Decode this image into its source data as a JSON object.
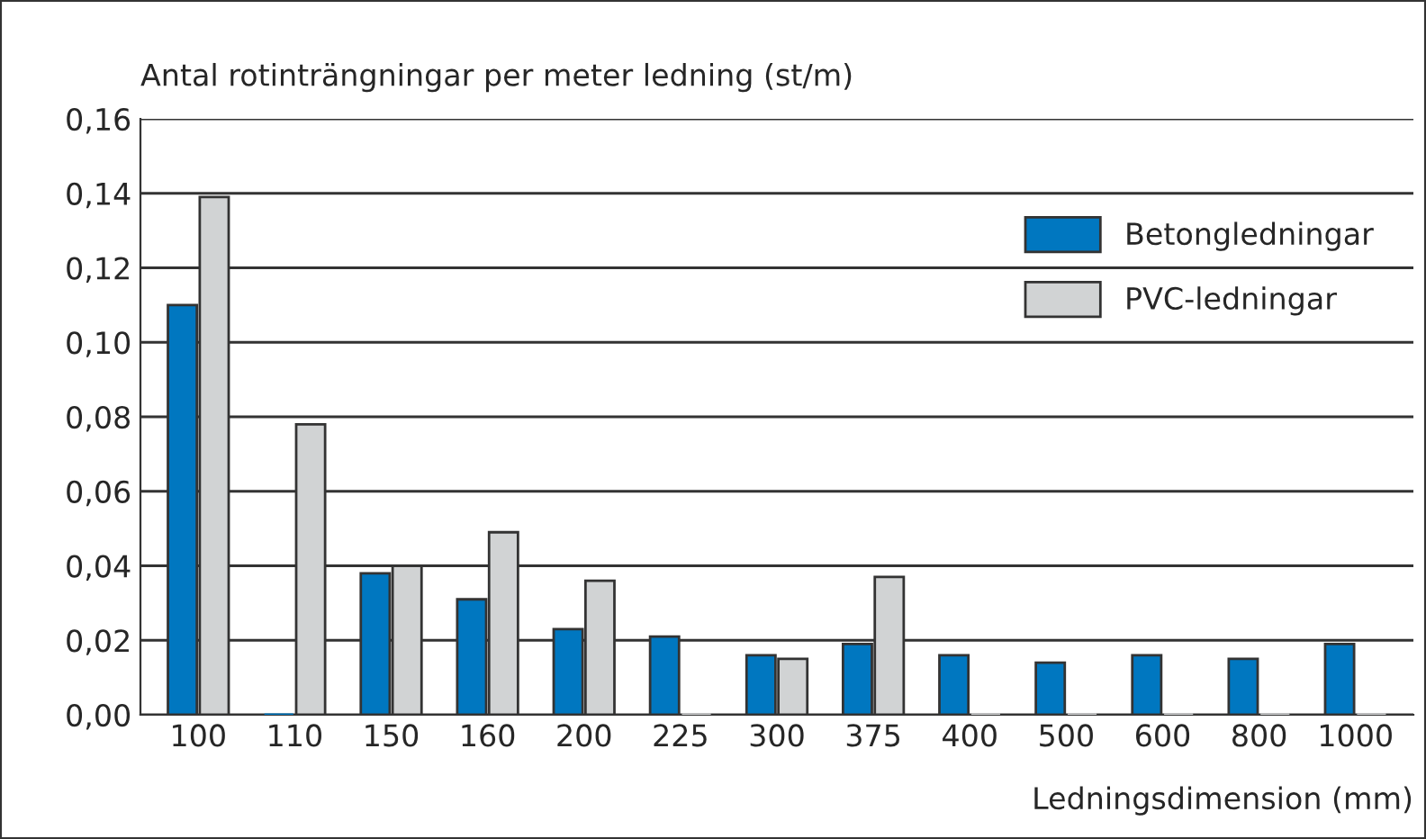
{
  "chart_data": {
    "type": "bar",
    "ylabel": "Antal rotinträngningar per meter ledning (st/m)",
    "xlabel": "Ledningsdimension (mm)",
    "categories": [
      "100",
      "110",
      "150",
      "160",
      "200",
      "225",
      "300",
      "375",
      "400",
      "500",
      "600",
      "800",
      "1000"
    ],
    "series": [
      {
        "name": "Betongledningar",
        "color": "#0077c0",
        "values": [
          0.11,
          0,
          0.038,
          0.031,
          0.023,
          0.021,
          0.016,
          0.019,
          0.016,
          0.014,
          0.016,
          0.015,
          0.019
        ]
      },
      {
        "name": "PVC-ledningar",
        "color": "#d1d3d4",
        "values": [
          0.139,
          0.078,
          0.04,
          0.049,
          0.036,
          0,
          0.015,
          0.037,
          0,
          0,
          0,
          0,
          0
        ]
      }
    ],
    "ylim": [
      0,
      0.16
    ],
    "yticks": [
      {
        "value": 0,
        "label": "0,00"
      },
      {
        "value": 0.02,
        "label": "0,02"
      },
      {
        "value": 0.04,
        "label": "0,04"
      },
      {
        "value": 0.06,
        "label": "0,06"
      },
      {
        "value": 0.08,
        "label": "0,08"
      },
      {
        "value": 0.1,
        "label": "0,10"
      },
      {
        "value": 0.12,
        "label": "0,12"
      },
      {
        "value": 0.14,
        "label": "0,14"
      },
      {
        "value": 0.16,
        "label": "0,16"
      }
    ],
    "grid": "y",
    "legend": "top right"
  }
}
